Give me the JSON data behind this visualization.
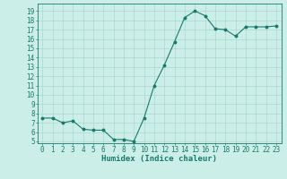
{
  "x": [
    0,
    1,
    2,
    3,
    4,
    5,
    6,
    7,
    8,
    9,
    10,
    11,
    12,
    13,
    14,
    15,
    16,
    17,
    18,
    19,
    20,
    21,
    22,
    23
  ],
  "y": [
    7.5,
    7.5,
    7.0,
    7.2,
    6.3,
    6.2,
    6.2,
    5.2,
    5.2,
    5.0,
    7.5,
    11.0,
    13.2,
    15.7,
    18.3,
    19.0,
    18.5,
    17.1,
    17.0,
    16.3,
    17.3,
    17.3,
    17.3,
    17.4
  ],
  "line_color": "#1a7a6a",
  "marker": "o",
  "marker_size": 1.8,
  "bg_color": "#cceee8",
  "grid_color": "#aad8d0",
  "xlabel": "Humidex (Indice chaleur)",
  "ylabel": "",
  "ylim": [
    4.8,
    19.8
  ],
  "xlim": [
    -0.5,
    23.5
  ],
  "yticks": [
    5,
    6,
    7,
    8,
    9,
    10,
    11,
    12,
    13,
    14,
    15,
    16,
    17,
    18,
    19
  ],
  "xticks": [
    0,
    1,
    2,
    3,
    4,
    5,
    6,
    7,
    8,
    9,
    10,
    11,
    12,
    13,
    14,
    15,
    16,
    17,
    18,
    19,
    20,
    21,
    22,
    23
  ],
  "tick_fontsize": 5.5,
  "label_fontsize": 6.5
}
